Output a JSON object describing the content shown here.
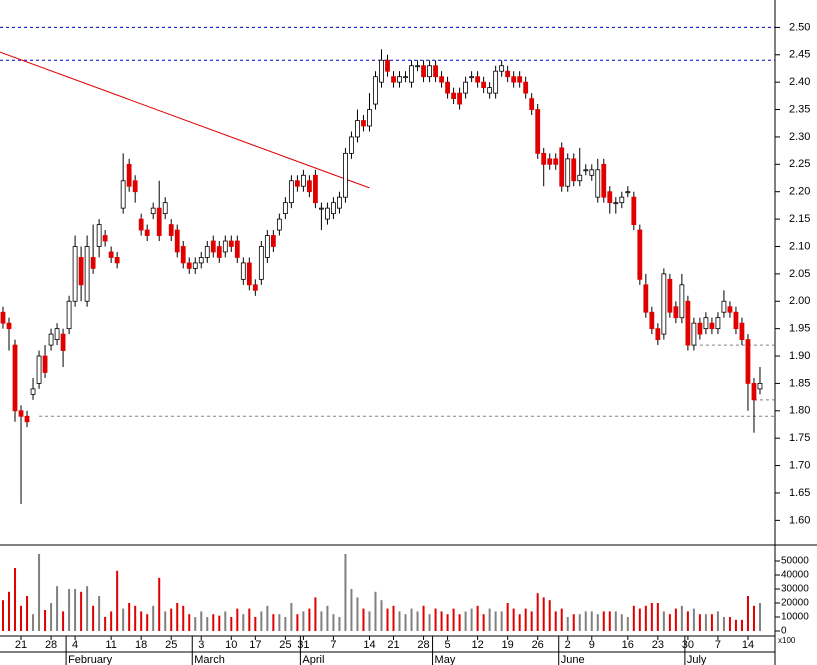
{
  "chart_data": {
    "type": "candlestick",
    "up_color": "#ffffff",
    "down_color": "#e00000",
    "wick_color": "#000000",
    "volume_up_color": "#808080",
    "volume_down_color": "#e00000",
    "open": [
      1.98,
      1.96,
      1.92,
      1.8,
      1.79,
      1.83,
      1.85,
      1.9,
      1.92,
      1.93,
      1.94,
      1.95,
      2.0,
      2.08,
      2.0,
      2.08,
      2.1,
      2.12,
      2.09,
      2.08,
      2.17,
      2.25,
      2.22,
      2.15,
      2.13,
      2.16,
      2.17,
      2.16,
      2.14,
      2.13,
      2.1,
      2.07,
      2.06,
      2.07,
      2.08,
      2.11,
      2.1,
      2.09,
      2.11,
      2.11,
      2.04,
      2.07,
      2.03,
      2.04,
      2.08,
      2.12,
      2.13,
      2.16,
      2.18,
      2.22,
      2.21,
      2.22,
      2.23,
      2.17,
      2.15,
      2.16,
      2.17,
      2.19,
      2.27,
      2.3,
      2.33,
      2.32,
      2.36,
      2.4,
      2.44,
      2.41,
      2.4,
      2.41,
      2.4,
      2.43,
      2.43,
      2.41,
      2.43,
      2.41,
      2.4,
      2.38,
      2.38,
      2.38,
      2.41,
      2.41,
      2.4,
      2.38,
      2.38,
      2.42,
      2.42,
      2.41,
      2.41,
      2.4,
      2.37,
      2.35,
      2.27,
      2.26,
      2.26,
      2.28,
      2.21,
      2.26,
      2.22,
      2.24,
      2.23,
      2.19,
      2.25,
      2.2,
      2.18,
      2.18,
      2.2,
      2.19,
      2.13,
      2.03,
      1.98,
      1.95,
      1.94,
      2.04,
      1.99,
      1.97,
      2.0,
      1.92,
      1.96,
      1.95,
      1.96,
      1.95,
      1.98,
      1.99,
      1.98,
      1.96,
      1.93,
      1.85,
      1.84
    ],
    "high": [
      1.99,
      1.97,
      1.93,
      1.81,
      1.8,
      1.86,
      1.91,
      1.92,
      1.95,
      1.96,
      1.95,
      2.01,
      2.12,
      2.1,
      2.12,
      2.14,
      2.15,
      2.13,
      2.1,
      2.09,
      2.27,
      2.26,
      2.23,
      2.16,
      2.14,
      2.18,
      2.22,
      2.19,
      2.15,
      2.14,
      2.11,
      2.08,
      2.08,
      2.09,
      2.11,
      2.12,
      2.11,
      2.12,
      2.12,
      2.12,
      2.08,
      2.08,
      2.04,
      2.11,
      2.13,
      2.13,
      2.16,
      2.19,
      2.23,
      2.23,
      2.24,
      2.23,
      2.24,
      2.18,
      2.18,
      2.19,
      2.2,
      2.28,
      2.31,
      2.35,
      2.34,
      2.38,
      2.42,
      2.46,
      2.45,
      2.42,
      2.42,
      2.42,
      2.44,
      2.44,
      2.44,
      2.44,
      2.44,
      2.42,
      2.41,
      2.39,
      2.39,
      2.41,
      2.42,
      2.42,
      2.41,
      2.4,
      2.43,
      2.44,
      2.43,
      2.42,
      2.42,
      2.41,
      2.38,
      2.36,
      2.28,
      2.27,
      2.27,
      2.29,
      2.27,
      2.27,
      2.28,
      2.25,
      2.25,
      2.26,
      2.26,
      2.21,
      2.19,
      2.2,
      2.21,
      2.2,
      2.14,
      2.05,
      1.99,
      1.96,
      2.06,
      2.05,
      2.0,
      2.05,
      2.01,
      1.97,
      1.97,
      1.98,
      1.97,
      1.98,
      2.02,
      2.0,
      1.99,
      1.97,
      1.94,
      1.86,
      1.88
    ],
    "low": [
      1.95,
      1.91,
      1.78,
      1.63,
      1.77,
      1.82,
      1.84,
      1.86,
      1.91,
      1.92,
      1.88,
      1.94,
      1.99,
      2.0,
      1.99,
      2.05,
      2.08,
      2.1,
      2.07,
      2.06,
      2.16,
      2.2,
      2.18,
      2.12,
      2.11,
      2.15,
      2.11,
      2.15,
      2.11,
      2.08,
      2.06,
      2.05,
      2.05,
      2.06,
      2.07,
      2.08,
      2.07,
      2.08,
      2.09,
      2.07,
      2.03,
      2.02,
      2.01,
      2.03,
      2.07,
      2.09,
      2.12,
      2.15,
      2.17,
      2.2,
      2.2,
      2.19,
      2.17,
      2.13,
      2.14,
      2.15,
      2.16,
      2.18,
      2.26,
      2.29,
      2.31,
      2.31,
      2.35,
      2.39,
      2.41,
      2.39,
      2.39,
      2.4,
      2.39,
      2.42,
      2.4,
      2.4,
      2.4,
      2.39,
      2.37,
      2.36,
      2.35,
      2.37,
      2.4,
      2.39,
      2.38,
      2.37,
      2.37,
      2.41,
      2.4,
      2.39,
      2.39,
      2.37,
      2.34,
      2.26,
      2.21,
      2.24,
      2.24,
      2.2,
      2.2,
      2.21,
      2.21,
      2.23,
      2.22,
      2.18,
      2.18,
      2.16,
      2.16,
      2.17,
      2.19,
      2.13,
      2.03,
      1.97,
      1.94,
      1.92,
      1.93,
      1.97,
      1.96,
      1.96,
      1.91,
      1.91,
      1.93,
      1.94,
      1.94,
      1.94,
      1.97,
      1.97,
      1.94,
      1.92,
      1.8,
      1.76,
      1.83
    ],
    "close": [
      1.96,
      1.95,
      1.8,
      1.79,
      1.78,
      1.84,
      1.9,
      1.87,
      1.94,
      1.95,
      1.91,
      2.0,
      2.1,
      2.03,
      2.1,
      2.06,
      2.14,
      2.11,
      2.08,
      2.07,
      2.22,
      2.21,
      2.2,
      2.13,
      2.12,
      2.17,
      2.12,
      2.18,
      2.12,
      2.09,
      2.07,
      2.06,
      2.07,
      2.08,
      2.1,
      2.09,
      2.08,
      2.11,
      2.1,
      2.08,
      2.07,
      2.03,
      2.02,
      2.1,
      2.12,
      2.1,
      2.15,
      2.18,
      2.22,
      2.21,
      2.23,
      2.2,
      2.18,
      2.17,
      2.17,
      2.18,
      2.19,
      2.27,
      2.3,
      2.33,
      2.32,
      2.35,
      2.41,
      2.44,
      2.42,
      2.4,
      2.41,
      2.41,
      2.43,
      2.43,
      2.41,
      2.43,
      2.41,
      2.4,
      2.38,
      2.37,
      2.36,
      2.4,
      2.41,
      2.4,
      2.39,
      2.39,
      2.42,
      2.43,
      2.41,
      2.4,
      2.4,
      2.38,
      2.35,
      2.27,
      2.25,
      2.25,
      2.25,
      2.21,
      2.26,
      2.22,
      2.23,
      2.24,
      2.24,
      2.24,
      2.19,
      2.18,
      2.18,
      2.19,
      2.2,
      2.14,
      2.04,
      1.98,
      1.95,
      1.93,
      2.05,
      1.98,
      1.97,
      2.03,
      1.92,
      1.96,
      1.94,
      1.97,
      1.95,
      1.97,
      2.0,
      1.98,
      1.95,
      1.93,
      1.85,
      1.82,
      1.85
    ],
    "volume": [
      22000,
      28000,
      45000,
      18000,
      25000,
      12000,
      55000,
      15000,
      20000,
      32000,
      14000,
      30000,
      30000,
      28000,
      32000,
      18000,
      25000,
      10000,
      14000,
      43000,
      16000,
      20000,
      18000,
      14000,
      12000,
      18000,
      38000,
      14000,
      16000,
      20000,
      18000,
      12000,
      10000,
      14000,
      10000,
      12000,
      11000,
      14000,
      10000,
      16000,
      12000,
      16000,
      10000,
      14000,
      18000,
      12000,
      12000,
      10000,
      20000,
      12000,
      14000,
      16000,
      24000,
      14000,
      18000,
      12000,
      10000,
      55000,
      30000,
      24000,
      16000,
      14000,
      28000,
      22000,
      16000,
      18000,
      14000,
      12000,
      16000,
      14000,
      18000,
      12000,
      16000,
      14000,
      12000,
      16000,
      12000,
      14000,
      16000,
      18000,
      12000,
      16000,
      14000,
      14000,
      20000,
      16000,
      12000,
      16000,
      14000,
      27000,
      24000,
      22000,
      14000,
      16000,
      10000,
      12000,
      12000,
      14000,
      14000,
      12000,
      14000,
      14000,
      14000,
      12000,
      10000,
      18000,
      16000,
      18000,
      20000,
      20000,
      14000,
      12000,
      16000,
      18000,
      14000,
      16000,
      12000,
      12000,
      12000,
      14000,
      10000,
      10000,
      8000,
      8000,
      25000,
      18000,
      20000
    ],
    "xlim": [
      -0.5,
      128.5
    ],
    "xticks": [
      {
        "value": 3,
        "label": "21"
      },
      {
        "value": 8,
        "label": "28"
      },
      {
        "value": 12,
        "label": "4"
      },
      {
        "value": 18,
        "label": "11"
      },
      {
        "value": 23,
        "label": "18"
      },
      {
        "value": 28,
        "label": "25"
      },
      {
        "value": 33,
        "label": "3"
      },
      {
        "value": 38,
        "label": "10"
      },
      {
        "value": 42,
        "label": "17"
      },
      {
        "value": 47,
        "label": "25"
      },
      {
        "value": 50,
        "label": "31"
      },
      {
        "value": 55,
        "label": "7"
      },
      {
        "value": 61,
        "label": "14"
      },
      {
        "value": 65,
        "label": "21"
      },
      {
        "value": 70,
        "label": "28"
      },
      {
        "value": 74,
        "label": "5"
      },
      {
        "value": 79,
        "label": "12"
      },
      {
        "value": 84,
        "label": "19"
      },
      {
        "value": 89,
        "label": "26"
      },
      {
        "value": 94,
        "label": "2"
      },
      {
        "value": 98,
        "label": "9"
      },
      {
        "value": 104,
        "label": "16"
      },
      {
        "value": 109,
        "label": "23"
      },
      {
        "value": 114,
        "label": "30"
      },
      {
        "value": 119,
        "label": "7"
      },
      {
        "value": 124,
        "label": "14"
      }
    ],
    "months": [
      {
        "value": 11,
        "label": "February"
      },
      {
        "value": 32,
        "label": "March"
      },
      {
        "value": 50,
        "label": "April"
      },
      {
        "value": 72,
        "label": "May"
      },
      {
        "value": 93,
        "label": "June"
      },
      {
        "value": 114,
        "label": "July"
      }
    ],
    "ylim": [
      1.555,
      2.55
    ],
    "yticks": [
      {
        "value": 2.5,
        "label": "2.50"
      },
      2.45,
      {
        "value": 2.4,
        "label": "2.40"
      },
      2.35,
      {
        "value": 2.3,
        "label": "2.30"
      },
      2.25,
      {
        "value": 2.2,
        "label": "2.20"
      },
      2.15,
      {
        "value": 2.1,
        "label": "2.10"
      },
      2.05,
      {
        "value": 2.0,
        "label": "2.00"
      },
      1.95,
      {
        "value": 1.9,
        "label": "1.90"
      },
      1.85,
      {
        "value": 1.8,
        "label": "1.80"
      },
      1.75,
      {
        "value": 1.7,
        "label": "1.70"
      },
      1.65,
      {
        "value": 1.6,
        "label": "1.60"
      }
    ],
    "volume_lim": [
      0,
      60000
    ],
    "volume_ticks": [
      50000,
      40000,
      30000,
      20000,
      10000,
      0
    ],
    "volume_unit": "x100",
    "levels": [
      {
        "value": 2.5,
        "from": -0.5,
        "color": "#0000cc"
      },
      {
        "value": 2.44,
        "from": -0.5,
        "color": "#0000cc"
      },
      {
        "value": 1.92,
        "from": 115,
        "color": "#808080"
      },
      {
        "value": 1.82,
        "from": 125,
        "color": "#808080"
      },
      {
        "value": 1.79,
        "from": 6,
        "color": "#808080"
      }
    ],
    "trendline": {
      "x": [
        -0.5,
        61
      ],
      "values": [
        2.455,
        2.207
      ],
      "color": "#e00000"
    }
  }
}
